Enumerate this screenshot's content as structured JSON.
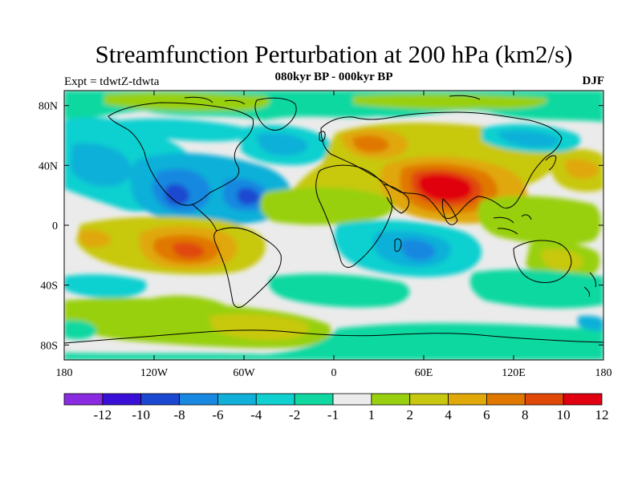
{
  "header": {
    "title": "Streamfunction Perturbation at 200 hPa (km2/s)",
    "left_label": "Expt = tdwtZ-tdwta",
    "center_label": "080kyr BP - 000kyr BP",
    "right_label": "DJF"
  },
  "chart_data": {
    "type": "heatmap",
    "title": "Streamfunction Perturbation at 200 hPa (km2/s)",
    "units": "km2/s",
    "season": "DJF",
    "x_ticks": [
      "180",
      "120W",
      "60W",
      "0",
      "60E",
      "120E",
      "180"
    ],
    "y_ticks": [
      "80N",
      "40N",
      "0",
      "40S",
      "80S"
    ],
    "lon_range": [
      -180,
      180
    ],
    "lat_range": [
      -90,
      90
    ],
    "colorbar": {
      "labels": [
        "-12",
        "-10",
        "-8",
        "-6",
        "-4",
        "-2",
        "-1",
        "1",
        "2",
        "4",
        "6",
        "8",
        "10",
        "12"
      ],
      "colors": [
        "#8a2be2",
        "#3a10d8",
        "#1a48d0",
        "#1888e0",
        "#10b0d8",
        "#10d0d0",
        "#10d8a0",
        "#ebebeb",
        "#98d010",
        "#c8c810",
        "#e0a808",
        "#e07800",
        "#e04808",
        "#e00010"
      ]
    },
    "anomalies": [
      {
        "name": "south-asia-max",
        "lon": 75,
        "lat": 25,
        "value": 12
      },
      {
        "name": "east-pacific-min",
        "lon": -105,
        "lat": 13,
        "value": -7
      },
      {
        "name": "caribbean-min",
        "lon": -55,
        "lat": 14,
        "value": -8
      },
      {
        "name": "south-america-max",
        "lon": -85,
        "lat": -15,
        "value": 7
      },
      {
        "name": "indian-ocean-min",
        "lon": 60,
        "lat": -20,
        "value": -5
      },
      {
        "name": "siberia-max",
        "lon": 45,
        "lat": 52,
        "value": 6
      },
      {
        "name": "south-atlantic-max",
        "lon": -55,
        "lat": -62,
        "value": 3
      },
      {
        "name": "north-pacific-max",
        "lon": 170,
        "lat": 40,
        "value": 4
      }
    ]
  }
}
